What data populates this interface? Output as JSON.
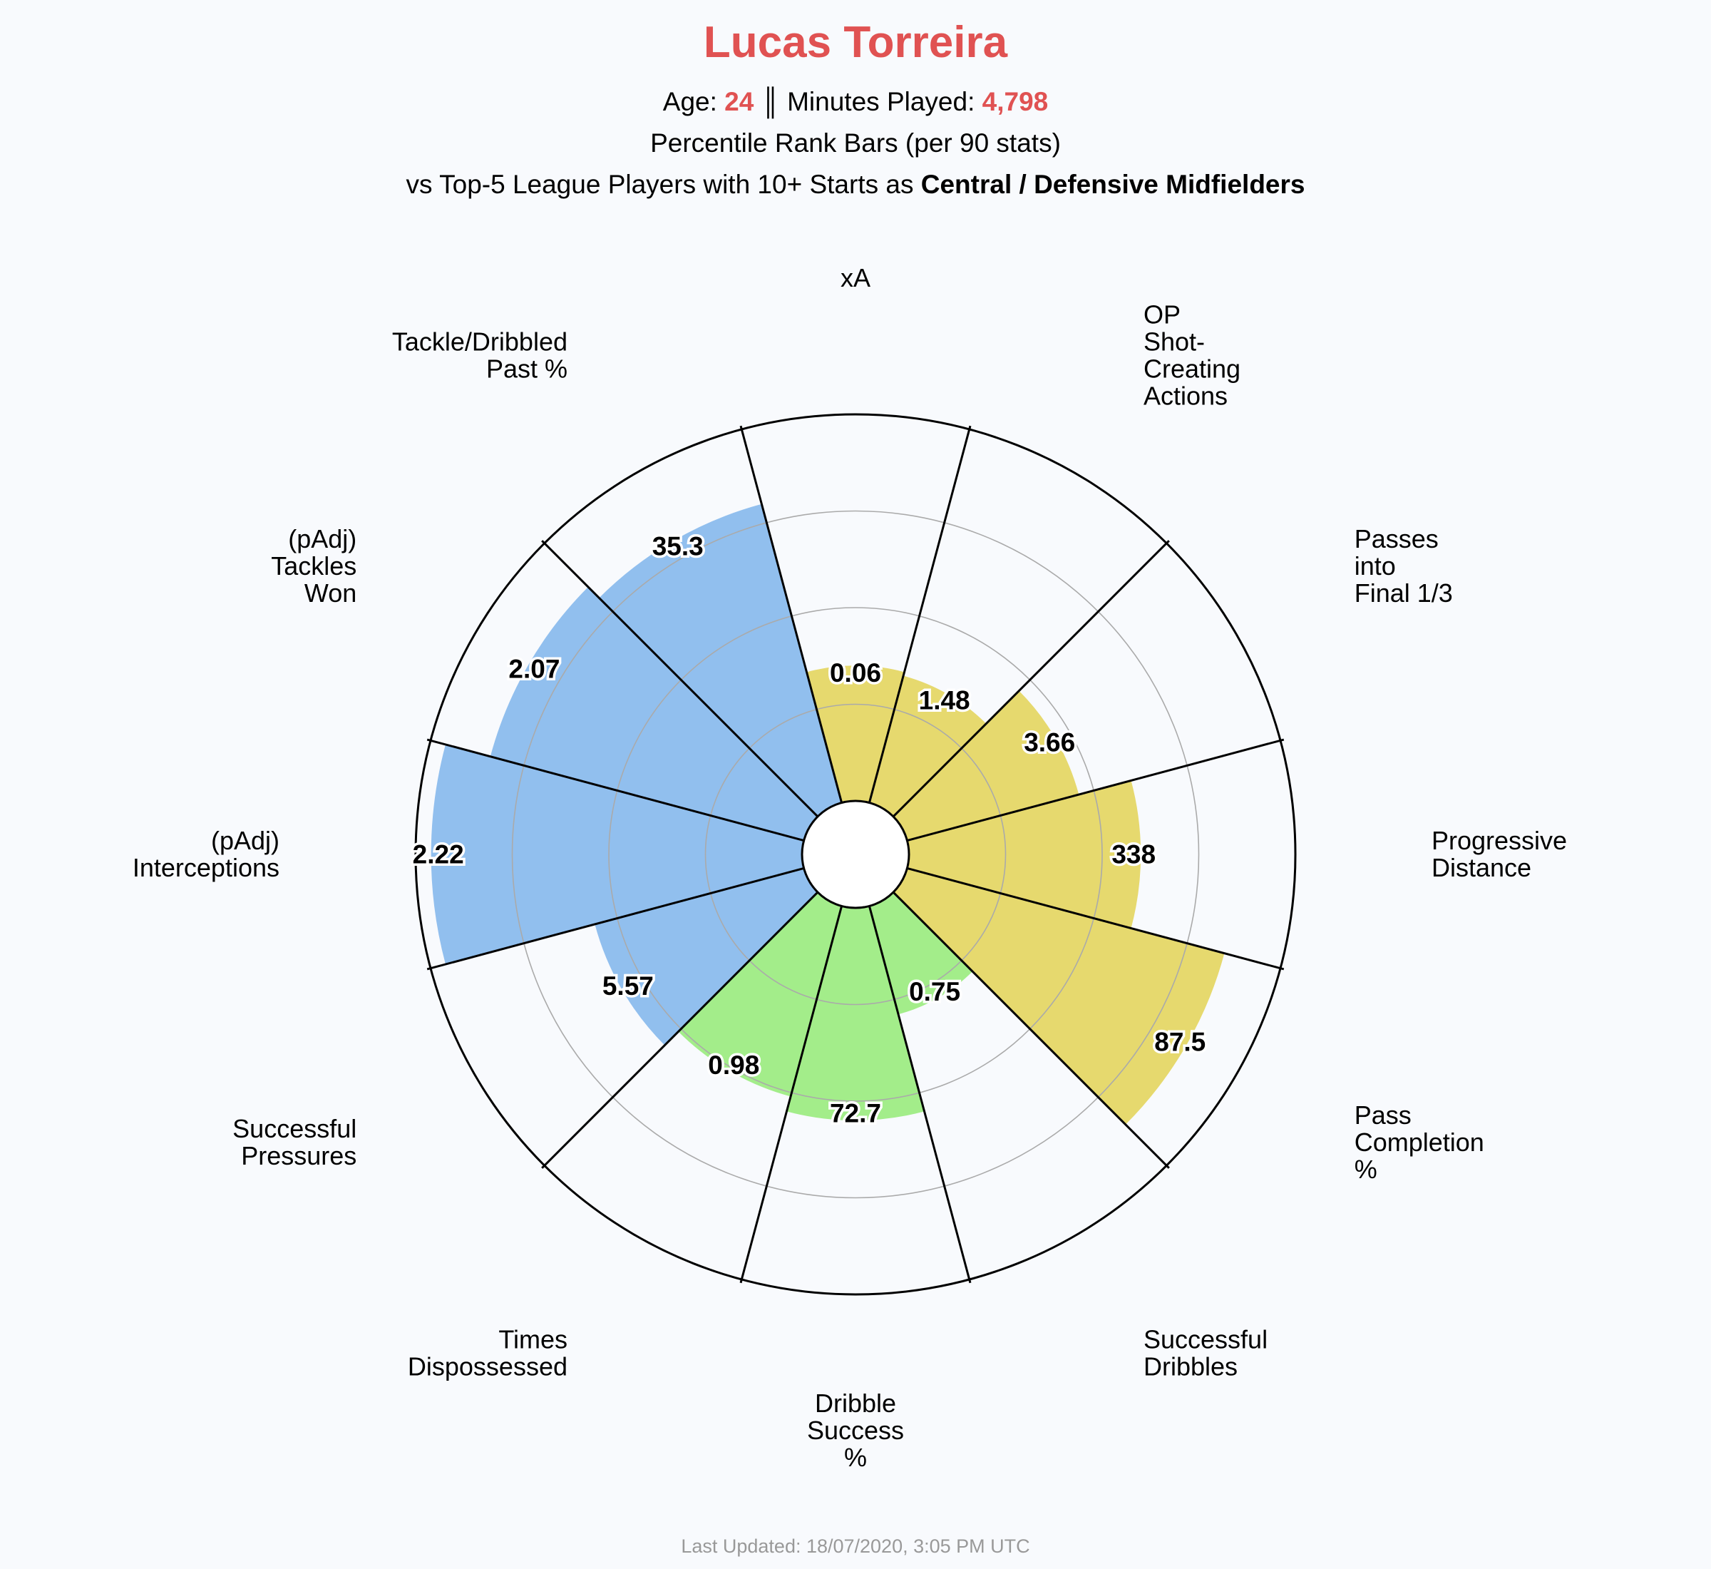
{
  "header": {
    "player_name": "Lucas Torreira",
    "age_label": "Age: ",
    "age_value": "24",
    "separator": " ║ ",
    "minutes_label": "Minutes Played: ",
    "minutes_value": "4,798",
    "line2": "Percentile Rank Bars (per 90 stats)",
    "line3_prefix": "vs Top-5 League Players with 10+ Starts as ",
    "line3_bold": "Central / Defensive Midfielders"
  },
  "footer": {
    "updated": "Last Updated: 18/07/2020, 3:05 PM UTC"
  },
  "colors": {
    "attacking": "#e6d96e",
    "possession": "#a3ed8a",
    "defending": "#91bfee",
    "highlight": "#e05252",
    "background": "#f8fafd"
  },
  "chart_data": {
    "type": "polar-bar",
    "value_scale": "percentile rank 0-100",
    "rings": [
      25,
      50,
      75,
      100
    ],
    "grid": true,
    "categories": [
      {
        "label": "xA",
        "value_label": "0.06",
        "percentile": 35,
        "group": "attacking"
      },
      {
        "label": "OP\nShot-\nCreating\nActions",
        "value_label": "1.48",
        "percentile": 34,
        "group": "attacking"
      },
      {
        "label": "Passes\ninto\nFinal 1/3",
        "value_label": "3.66",
        "percentile": 46,
        "group": "attacking"
      },
      {
        "label": "Progressive\nDistance",
        "value_label": "338",
        "percentile": 60,
        "group": "attacking"
      },
      {
        "label": "Pass\nCompletion\n%",
        "value_label": "87.5",
        "percentile": 85,
        "group": "attacking"
      },
      {
        "label": "Successful\nDribbles",
        "value_label": "0.75",
        "percentile": 29,
        "group": "possession"
      },
      {
        "label": "Dribble\nSuccess\n%",
        "value_label": "72.7",
        "percentile": 55,
        "group": "possession"
      },
      {
        "label": "Times\nDispossessed",
        "value_label": "0.98",
        "percentile": 51,
        "group": "possession"
      },
      {
        "label": "Successful\nPressures",
        "value_label": "5.57",
        "percentile": 56,
        "group": "defending"
      },
      {
        "label": "(pAdj)\nInterceptions",
        "value_label": "2.22",
        "percentile": 96,
        "group": "defending"
      },
      {
        "label": "(pAdj)\nTackles\nWon",
        "value_label": "2.07",
        "percentile": 84,
        "group": "defending"
      },
      {
        "label": "Tackle/Dribbled\nPast %",
        "value_label": "35.3",
        "percentile": 80,
        "group": "defending"
      }
    ]
  }
}
